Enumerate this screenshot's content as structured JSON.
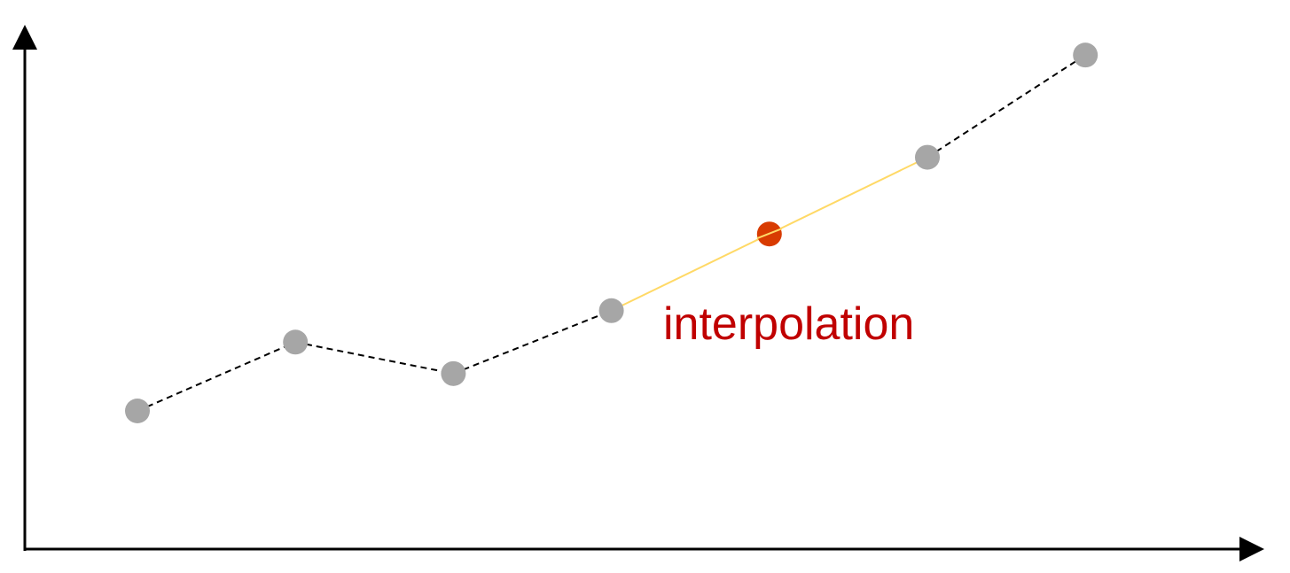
{
  "diagram": {
    "annotation": "interpolation",
    "colors": {
      "axis": "#000000",
      "known_point": "#a6a6a6",
      "known_segment": "#000000",
      "interpolated_segment": "#ffd966",
      "interpolated_point": "#d83b01",
      "annotation_text": "#c00000"
    },
    "known_points": [
      {
        "x": 1,
        "y": 1.0
      },
      {
        "x": 2,
        "y": 2.75
      },
      {
        "x": 3,
        "y": 1.95
      },
      {
        "x": 4,
        "y": 3.55
      },
      {
        "x": 6,
        "y": 7.45
      },
      {
        "x": 7,
        "y": 10.05
      }
    ],
    "interpolated_point": {
      "x": 5,
      "y": 5.5
    },
    "interpolated_between": [
      3,
      4
    ]
  }
}
